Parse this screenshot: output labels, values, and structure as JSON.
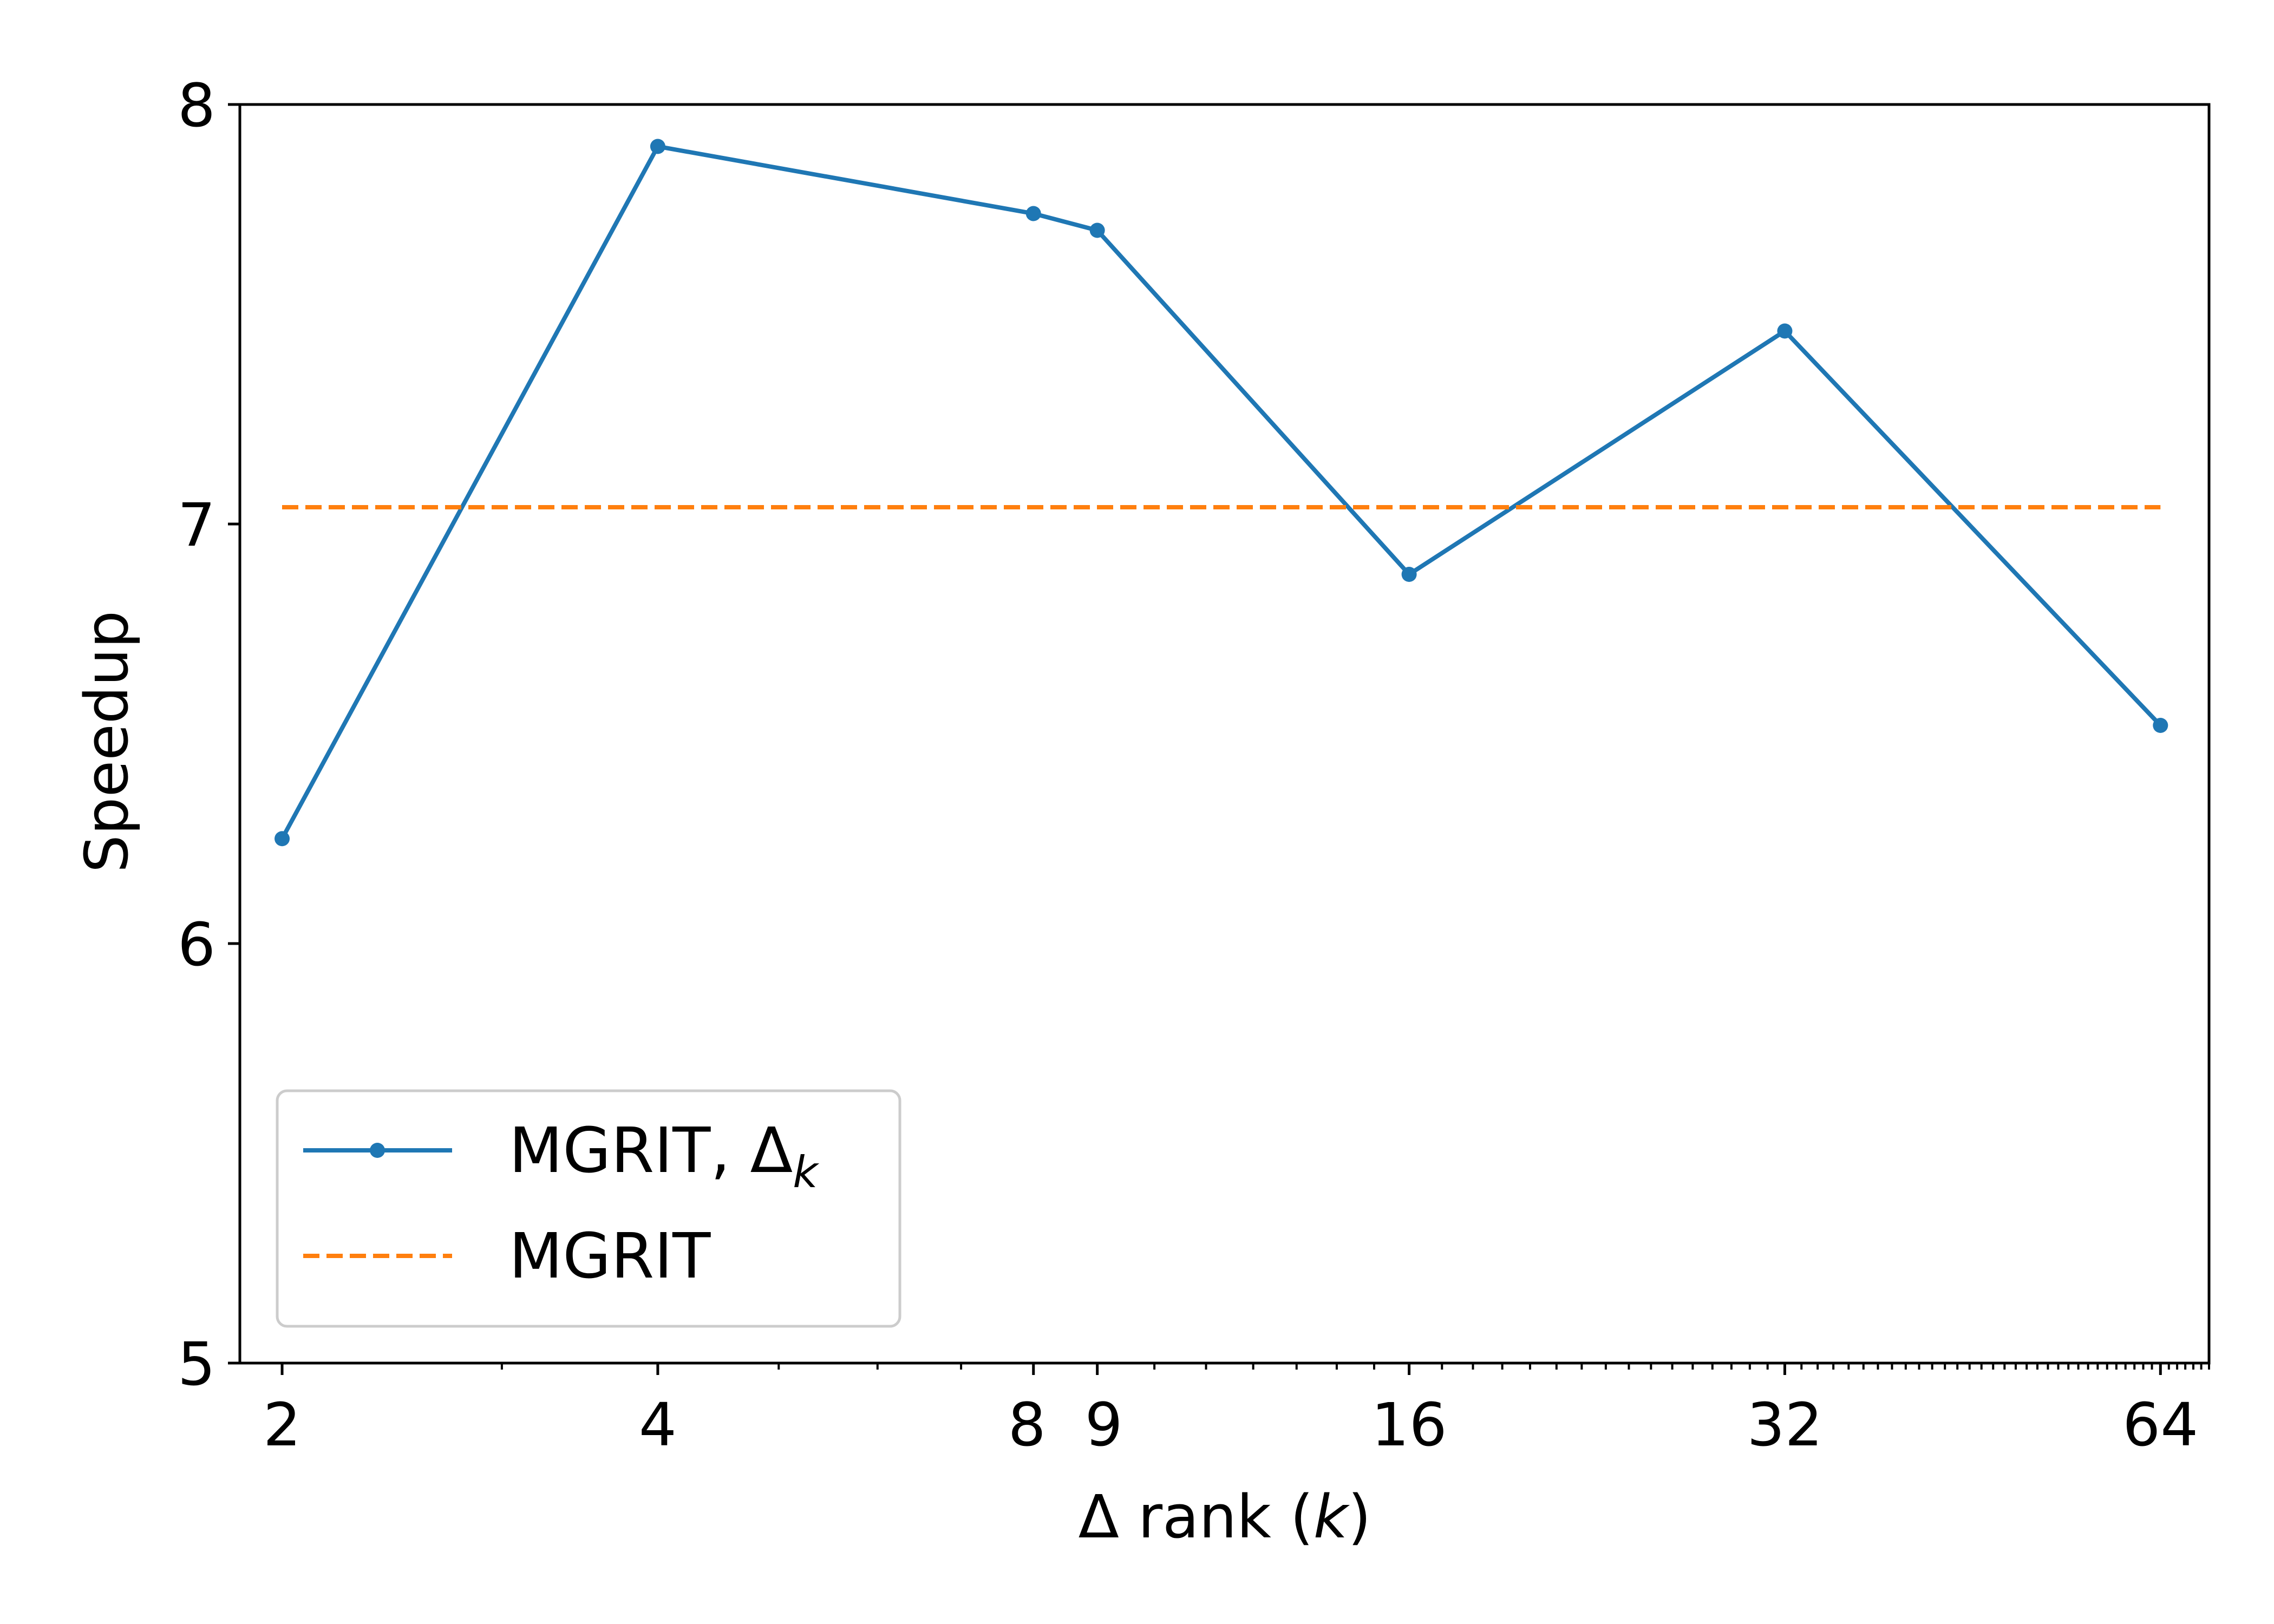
{
  "chart_data": {
    "type": "line",
    "xlabel": "Δ rank (k)",
    "xlabel_parts": {
      "prefix": "Δ rank (",
      "var": "k",
      "suffix": ")"
    },
    "ylabel": "Speedup",
    "x_scale": "log2",
    "xlim": [
      1.85,
      70
    ],
    "ylim": [
      5,
      8
    ],
    "x_ticks": [
      2,
      4,
      8,
      9,
      16,
      32,
      64
    ],
    "x_tick_labels": [
      "2",
      "4",
      "8",
      "9",
      "16",
      "32",
      "64"
    ],
    "y_ticks": [
      5,
      6,
      7,
      8
    ],
    "y_tick_labels": [
      "5",
      "6",
      "7",
      "8"
    ],
    "grid": false,
    "legend_position": "lower-left",
    "series": [
      {
        "name": "MGRIT, Δk",
        "name_parts": {
          "base": "MGRIT, Δ",
          "sub": "k"
        },
        "style": "solid-marker",
        "color": "#1f77b4",
        "x": [
          2,
          4,
          8,
          9,
          16,
          32,
          64
        ],
        "values": [
          6.25,
          7.9,
          7.74,
          7.7,
          6.88,
          7.46,
          6.52
        ]
      },
      {
        "name": "MGRIT",
        "style": "dashed",
        "color": "#ff7f0e",
        "x": [
          2,
          64
        ],
        "values": [
          7.04,
          7.04
        ]
      }
    ]
  }
}
